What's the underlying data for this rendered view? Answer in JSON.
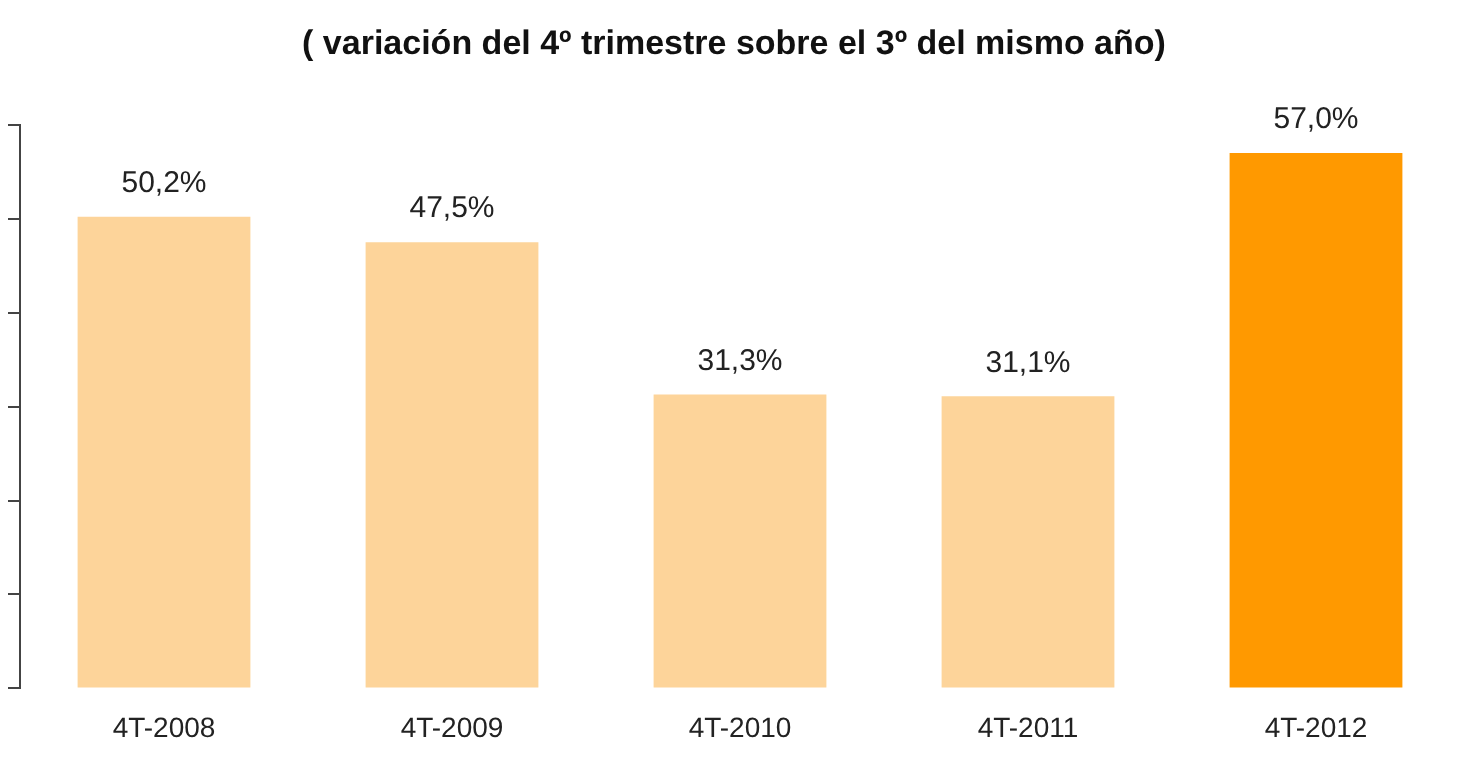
{
  "chart_data": {
    "type": "bar",
    "title": "( variación del 4º trimestre sobre el 3º del mismo año)",
    "categories": [
      "4T-2008",
      "4T-2009",
      "4T-2010",
      "4T-2011",
      "4T-2012"
    ],
    "values": [
      50.2,
      47.5,
      31.3,
      31.1,
      57.0
    ],
    "colors": [
      "#fdd49a",
      "#fdd49a",
      "#fdd49a",
      "#fdd49a",
      "#ff9900"
    ],
    "value_labels": [
      "50,2%",
      "47,5%",
      "31,3%",
      "31,1%",
      "57,0%"
    ],
    "ylim": [
      0,
      60
    ],
    "yticks": [
      {
        "value": 0,
        "label": null
      },
      {
        "value": 10,
        "label": null
      },
      {
        "value": 20,
        "label": null
      },
      {
        "value": 30,
        "label": null
      },
      {
        "value": 40,
        "label": null
      },
      {
        "value": 50,
        "label": null
      },
      {
        "value": 60,
        "label": null
      }
    ],
    "tick_labels": "x",
    "grid": false,
    "legend": false
  }
}
